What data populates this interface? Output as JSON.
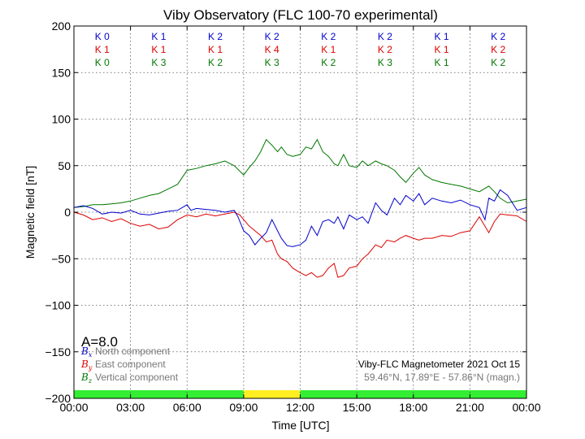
{
  "chart_data": {
    "type": "line",
    "title": "Viby Observatory (FLC 100-70 experimental)",
    "xlabel": "Time [UTC]",
    "ylabel": "Magnetic field [nT]",
    "xlim": [
      0,
      24
    ],
    "ylim": [
      -200,
      200
    ],
    "x_ticks": [
      0,
      3,
      6,
      9,
      12,
      15,
      18,
      21,
      24
    ],
    "x_tick_labels": [
      "00:00",
      "03:00",
      "06:00",
      "09:00",
      "12:00",
      "15:00",
      "18:00",
      "21:00",
      "00:00"
    ],
    "y_ticks": [
      -200,
      -150,
      -100,
      -50,
      0,
      50,
      100,
      150,
      200
    ],
    "y_tick_labels": [
      "−200",
      "−150",
      "−100",
      "−50",
      "0",
      "50",
      "100",
      "150",
      "200"
    ],
    "grid": true,
    "k_indices": [
      {
        "name": "Bx",
        "color": "#0000cc",
        "labels": [
          "K 0",
          "K 1",
          "K 2",
          "K 2",
          "K 2",
          "K 2",
          "K 1",
          "K 2"
        ]
      },
      {
        "name": "By",
        "color": "#dd0000",
        "labels": [
          "K 1",
          "K 1",
          "K 1",
          "K 4",
          "K 1",
          "K 2",
          "K 1",
          "K 2"
        ]
      },
      {
        "name": "Bz",
        "color": "#007700",
        "labels": [
          "K 0",
          "K 3",
          "K 2",
          "K 3",
          "K 2",
          "K 3",
          "K 1",
          "K 2"
        ]
      }
    ],
    "a_index": "A=8.0",
    "status_bar": [
      {
        "from": 0,
        "to": 9,
        "color": "#33ee33"
      },
      {
        "from": 9,
        "to": 12,
        "color": "#ffee22"
      },
      {
        "from": 12,
        "to": 24,
        "color": "#33ee33"
      }
    ],
    "legend": {
      "placement": "bottom-left",
      "entries": [
        {
          "symbol": "B",
          "subscript": "x",
          "label": "North component",
          "color": "#0000cc"
        },
        {
          "symbol": "B",
          "subscript": "y",
          "label": "East component",
          "color": "#dd0000"
        },
        {
          "symbol": "B",
          "subscript": "z",
          "label": "Vertical component",
          "color": "#007700"
        }
      ]
    },
    "info": {
      "line1": "Viby-FLC Magnetometer 2021 Oct 15",
      "line2": "59.46°N, 17.89°E - 57.86°N (magn.)"
    },
    "series": [
      {
        "name": "North component",
        "color": "#0000cc",
        "x": [
          0,
          0.5,
          1,
          1.5,
          2,
          2.5,
          3,
          3.5,
          4,
          4.5,
          5,
          5.5,
          6,
          6.2,
          6.5,
          7,
          7.5,
          8,
          8.5,
          8.7,
          9,
          9.3,
          9.6,
          9.9,
          10.2,
          10.5,
          10.8,
          11,
          11.3,
          11.6,
          12,
          12.3,
          12.6,
          12.9,
          13.2,
          13.5,
          13.8,
          14,
          14.3,
          14.6,
          15,
          15.3,
          15.6,
          16,
          16.3,
          16.6,
          17,
          17.3,
          17.6,
          18,
          18.3,
          18.6,
          19,
          19.5,
          20,
          20.5,
          21,
          21.5,
          21.8,
          22,
          22.3,
          22.6,
          23,
          23.5,
          24
        ],
        "y": [
          5,
          7,
          4,
          -2,
          0,
          -1,
          2,
          -2,
          -3,
          -1,
          1,
          2,
          8,
          2,
          4,
          3,
          2,
          0,
          2,
          -5,
          -20,
          -25,
          -35,
          -28,
          -22,
          -8,
          -20,
          -28,
          -36,
          -37,
          -35,
          -30,
          -15,
          -25,
          -10,
          -8,
          -12,
          -5,
          -18,
          -3,
          -8,
          -5,
          -12,
          10,
          2,
          -3,
          15,
          8,
          18,
          12,
          20,
          8,
          15,
          12,
          10,
          13,
          8,
          5,
          -8,
          15,
          12,
          24,
          18,
          2,
          5
        ]
      },
      {
        "name": "East component",
        "color": "#dd0000",
        "x": [
          0,
          0.5,
          1,
          1.5,
          2,
          2.5,
          3,
          3.5,
          4,
          4.5,
          5,
          5.5,
          6,
          6.5,
          7,
          7.5,
          8,
          8.5,
          8.8,
          9,
          9.3,
          9.6,
          9.9,
          10.2,
          10.5,
          10.8,
          11,
          11.3,
          11.6,
          12,
          12.3,
          12.6,
          12.9,
          13.2,
          13.5,
          13.8,
          14,
          14.3,
          14.6,
          15,
          15.3,
          15.6,
          16,
          16.3,
          16.6,
          17,
          17.3,
          17.6,
          18,
          18.3,
          18.6,
          19,
          19.5,
          20,
          20.5,
          21,
          21.5,
          21.8,
          22,
          22.3,
          22.6,
          23,
          23.5,
          24
        ],
        "y": [
          0,
          -3,
          -8,
          -6,
          -10,
          -7,
          -12,
          -15,
          -13,
          -18,
          -16,
          -8,
          -3,
          -5,
          -2,
          -4,
          -2,
          0,
          -3,
          -8,
          -15,
          -20,
          -25,
          -32,
          -30,
          -45,
          -50,
          -53,
          -60,
          -65,
          -68,
          -65,
          -70,
          -68,
          -60,
          -55,
          -70,
          -68,
          -60,
          -58,
          -50,
          -45,
          -35,
          -38,
          -30,
          -32,
          -28,
          -25,
          -28,
          -30,
          -28,
          -28,
          -25,
          -26,
          -22,
          -20,
          -5,
          -15,
          -22,
          -10,
          -2,
          -3,
          -4,
          -10
        ]
      },
      {
        "name": "Vertical component",
        "color": "#007700",
        "x": [
          0,
          0.5,
          1,
          1.5,
          2,
          2.5,
          3,
          3.5,
          4,
          4.5,
          5,
          5.5,
          6,
          6.5,
          7,
          7.5,
          8,
          8.5,
          9,
          9.3,
          9.6,
          9.9,
          10.2,
          10.5,
          10.8,
          11,
          11.3,
          11.6,
          12,
          12.3,
          12.6,
          12.9,
          13.2,
          13.5,
          13.8,
          14,
          14.3,
          14.6,
          15,
          15.3,
          15.6,
          16,
          16.3,
          16.6,
          17,
          17.3,
          17.6,
          18,
          18.3,
          18.6,
          19,
          19.5,
          20,
          20.5,
          21,
          21.5,
          22,
          22.3,
          22.6,
          23,
          23.5,
          24
        ],
        "y": [
          5,
          6,
          8,
          8,
          9,
          10,
          12,
          15,
          18,
          20,
          25,
          30,
          45,
          47,
          50,
          52,
          55,
          50,
          40,
          48,
          55,
          65,
          78,
          72,
          65,
          70,
          62,
          60,
          62,
          70,
          68,
          78,
          65,
          60,
          52,
          50,
          62,
          50,
          48,
          55,
          50,
          55,
          52,
          50,
          45,
          38,
          32,
          42,
          48,
          40,
          35,
          32,
          30,
          28,
          25,
          22,
          28,
          22,
          15,
          10,
          12,
          14
        ]
      }
    ]
  }
}
